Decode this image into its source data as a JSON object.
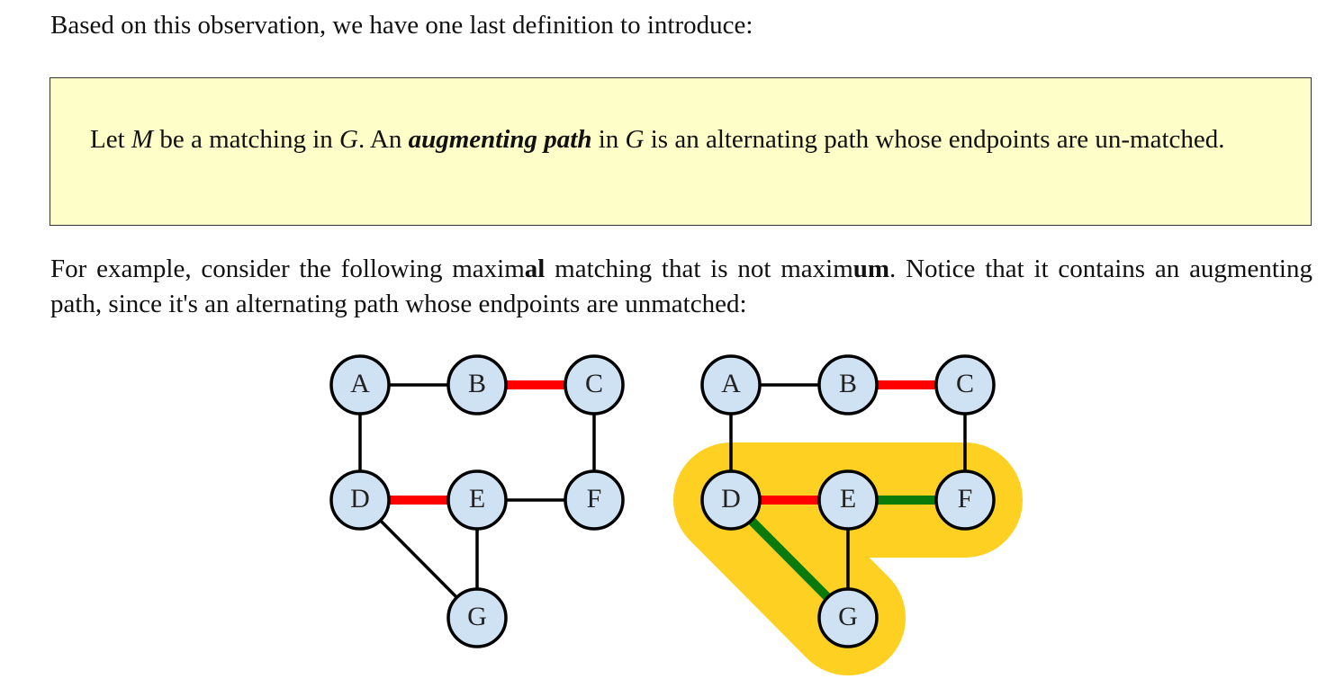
{
  "intro": {
    "text": "Based on this observation, we have one last definition to introduce:"
  },
  "definition": {
    "part1": "Let ",
    "var_M": "M",
    "part2": " be a matching in ",
    "var_G1": "G",
    "part3": ".  An ",
    "term": "augmenting path",
    "part4": " in ",
    "var_G2": "G",
    "part5": " is an alternating path whose endpoints are un-matched."
  },
  "example": {
    "part1": "For example, consider the following maxim",
    "bold1": "al",
    "part2": " matching that is not maxim",
    "bold2": "um",
    "part3": ".  Notice that it contains an augmenting path, since it's an alternating path whose endpoints are unmatched:"
  },
  "colors": {
    "node_fill": "#cfe2f3",
    "node_stroke": "#000000",
    "matched_edge": "#ff0000",
    "augmenting_edge": "#0a7a0a",
    "highlight": "#fdd021",
    "box_bg": "#fefec8"
  },
  "graphs": [
    {
      "name": "left-graph",
      "nodes": [
        "A",
        "B",
        "C",
        "D",
        "E",
        "F",
        "G"
      ],
      "edges": [
        {
          "from": "A",
          "to": "B",
          "type": "plain"
        },
        {
          "from": "B",
          "to": "C",
          "type": "matched"
        },
        {
          "from": "A",
          "to": "D",
          "type": "plain"
        },
        {
          "from": "C",
          "to": "F",
          "type": "plain"
        },
        {
          "from": "D",
          "to": "E",
          "type": "matched"
        },
        {
          "from": "E",
          "to": "F",
          "type": "plain"
        },
        {
          "from": "D",
          "to": "G",
          "type": "plain"
        },
        {
          "from": "E",
          "to": "G",
          "type": "plain"
        }
      ]
    },
    {
      "name": "right-graph",
      "nodes": [
        "A",
        "B",
        "C",
        "D",
        "E",
        "F",
        "G"
      ],
      "edges": [
        {
          "from": "A",
          "to": "B",
          "type": "plain"
        },
        {
          "from": "B",
          "to": "C",
          "type": "matched"
        },
        {
          "from": "A",
          "to": "D",
          "type": "plain"
        },
        {
          "from": "C",
          "to": "F",
          "type": "plain"
        },
        {
          "from": "D",
          "to": "E",
          "type": "matched"
        },
        {
          "from": "E",
          "to": "F",
          "type": "augmenting"
        },
        {
          "from": "D",
          "to": "G",
          "type": "augmenting"
        },
        {
          "from": "E",
          "to": "G",
          "type": "plain"
        }
      ],
      "highlighted_path": [
        "G",
        "D",
        "E",
        "F"
      ]
    }
  ]
}
